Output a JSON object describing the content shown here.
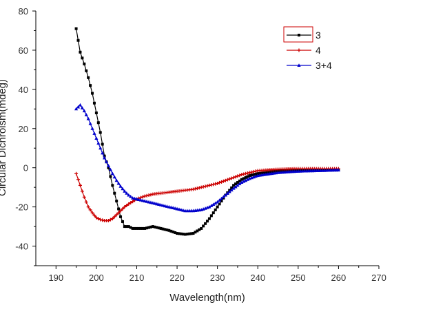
{
  "chart_data": {
    "type": "line",
    "title": "",
    "xlabel": "Wavelength(nm)",
    "ylabel": "Circular Dichroism(mdeg)",
    "xlim": [
      185,
      270
    ],
    "ylim": [
      -50,
      80
    ],
    "xticks": [
      190,
      200,
      210,
      220,
      230,
      240,
      250,
      260,
      270
    ],
    "yticks": [
      80,
      60,
      40,
      20,
      0,
      -20,
      -40
    ],
    "grid": false,
    "legend": "top-right",
    "series": [
      {
        "name": "3",
        "color": "#000000",
        "marker": "square",
        "x": [
          195,
          196,
          197,
          198,
          199,
          200,
          201,
          202,
          203,
          204,
          205,
          206,
          207,
          208,
          209,
          210,
          212,
          214,
          216,
          218,
          220,
          222,
          224,
          226,
          228,
          230,
          232,
          234,
          236,
          238,
          240,
          245,
          250,
          255,
          260
        ],
        "y": [
          71,
          59,
          53,
          46,
          38,
          28,
          18,
          6,
          0,
          -9,
          -17,
          -25,
          -30,
          -30,
          -31,
          -31,
          -31,
          -30,
          -31,
          -32,
          -33.5,
          -34,
          -33.5,
          -31,
          -26,
          -20,
          -14,
          -9,
          -6,
          -4,
          -3,
          -1.5,
          -1,
          -1,
          -1
        ]
      },
      {
        "name": "4",
        "color": "#cc0000",
        "marker": "plus",
        "x": [
          195,
          196,
          197,
          198,
          199,
          200,
          201,
          202,
          203,
          204,
          205,
          206,
          207,
          208,
          210,
          212,
          214,
          216,
          218,
          220,
          222,
          224,
          226,
          228,
          230,
          232,
          234,
          236,
          238,
          240,
          245,
          250,
          255,
          260
        ],
        "y": [
          -3,
          -9,
          -15,
          -20,
          -23,
          -25.5,
          -26.5,
          -27,
          -27,
          -26,
          -24,
          -22,
          -20,
          -18.5,
          -16,
          -14.5,
          -13.5,
          -13,
          -12.5,
          -12,
          -11.5,
          -11,
          -10,
          -9,
          -8,
          -6.5,
          -5,
          -3.5,
          -2.5,
          -1.5,
          -0.8,
          -0.5,
          -0.5,
          -0.5
        ]
      },
      {
        "name": "3+4",
        "color": "#0000cc",
        "marker": "triangle",
        "x": [
          195,
          196,
          197,
          198,
          199,
          200,
          201,
          202,
          203,
          204,
          205,
          206,
          207,
          208,
          209,
          210,
          212,
          214,
          216,
          218,
          220,
          222,
          224,
          226,
          228,
          230,
          232,
          234,
          236,
          238,
          240,
          245,
          250,
          255,
          260
        ],
        "y": [
          30,
          32,
          29,
          25,
          20,
          15,
          10,
          5,
          1,
          -3,
          -6.5,
          -9.5,
          -12,
          -14,
          -15.5,
          -16,
          -17,
          -18,
          -19,
          -20,
          -21,
          -22,
          -22,
          -21.5,
          -20,
          -17.5,
          -14,
          -10.5,
          -7.5,
          -5.5,
          -4,
          -2.5,
          -1.8,
          -1.5,
          -1.2
        ]
      }
    ]
  }
}
